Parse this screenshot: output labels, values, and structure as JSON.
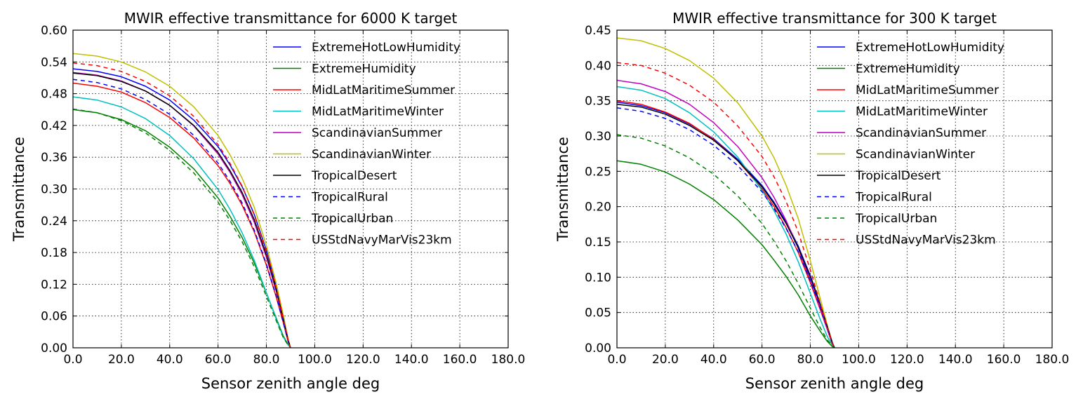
{
  "chart_data": [
    {
      "type": "line",
      "title": "MWIR effective transmittance for 6000 K target",
      "xlabel": "Sensor zenith angle deg",
      "ylabel": "Transmittance",
      "xlim": [
        0,
        180
      ],
      "ylim": [
        0,
        0.6
      ],
      "xticks": [
        0,
        20,
        40,
        60,
        80,
        100,
        120,
        140,
        160,
        180
      ],
      "xtick_labels": [
        "0.0",
        "20.0",
        "40.0",
        "60.0",
        "80.0",
        "100.0",
        "120.0",
        "140.0",
        "160.0",
        "180.0"
      ],
      "yticks": [
        0,
        0.06,
        0.12,
        0.18,
        0.24,
        0.3,
        0.36,
        0.42,
        0.48,
        0.54,
        0.6
      ],
      "ytick_labels": [
        "0.00",
        "0.06",
        "0.12",
        "0.18",
        "0.24",
        "0.30",
        "0.36",
        "0.42",
        "0.48",
        "0.54",
        "0.60"
      ],
      "grid": true,
      "legend_position": "top-right",
      "x": [
        0,
        10,
        20,
        30,
        40,
        50,
        60,
        65,
        70,
        75,
        80,
        84,
        87,
        89,
        90
      ],
      "series": [
        {
          "name": "ExtremeHotLowHumidity",
          "color": "#0000ff",
          "style": "solid",
          "values": [
            0.527,
            0.522,
            0.512,
            0.494,
            0.468,
            0.43,
            0.38,
            0.345,
            0.304,
            0.252,
            0.184,
            0.117,
            0.058,
            0.015,
            0.0
          ]
        },
        {
          "name": "ExtremeHumidity",
          "color": "#008000",
          "style": "solid",
          "values": [
            0.45,
            0.444,
            0.431,
            0.41,
            0.379,
            0.338,
            0.283,
            0.248,
            0.208,
            0.16,
            0.103,
            0.057,
            0.022,
            0.006,
            0.0
          ]
        },
        {
          "name": "MidLatMaritimeSummer",
          "color": "#ff0000",
          "style": "solid",
          "values": [
            0.5,
            0.494,
            0.483,
            0.463,
            0.435,
            0.396,
            0.344,
            0.31,
            0.269,
            0.219,
            0.156,
            0.097,
            0.047,
            0.011,
            0.0
          ]
        },
        {
          "name": "MidLatMaritimeWinter",
          "color": "#00bfbf",
          "style": "solid",
          "values": [
            0.474,
            0.468,
            0.455,
            0.433,
            0.401,
            0.357,
            0.299,
            0.261,
            0.217,
            0.165,
            0.104,
            0.055,
            0.02,
            0.005,
            0.0
          ]
        },
        {
          "name": "ScandinavianSummer",
          "color": "#bf00bf",
          "style": "solid",
          "values": [
            0.52,
            0.515,
            0.504,
            0.485,
            0.458,
            0.419,
            0.366,
            0.331,
            0.289,
            0.237,
            0.171,
            0.108,
            0.053,
            0.013,
            0.0
          ]
        },
        {
          "name": "ScandinavianWinter",
          "color": "#bfbf00",
          "style": "solid",
          "values": [
            0.556,
            0.551,
            0.54,
            0.521,
            0.494,
            0.455,
            0.401,
            0.364,
            0.32,
            0.265,
            0.193,
            0.123,
            0.061,
            0.016,
            0.0
          ]
        },
        {
          "name": "TropicalDesert",
          "color": "#000000",
          "style": "solid",
          "values": [
            0.519,
            0.514,
            0.503,
            0.485,
            0.458,
            0.42,
            0.369,
            0.334,
            0.293,
            0.242,
            0.175,
            0.111,
            0.054,
            0.014,
            0.0
          ]
        },
        {
          "name": "TropicalRural",
          "color": "#0000ff",
          "style": "dashed",
          "values": [
            0.507,
            0.501,
            0.489,
            0.469,
            0.441,
            0.401,
            0.349,
            0.314,
            0.273,
            0.222,
            0.158,
            0.099,
            0.047,
            0.012,
            0.0
          ]
        },
        {
          "name": "TropicalUrban",
          "color": "#008000",
          "style": "dashed",
          "values": [
            0.451,
            0.444,
            0.429,
            0.406,
            0.373,
            0.33,
            0.275,
            0.24,
            0.2,
            0.153,
            0.097,
            0.052,
            0.019,
            0.005,
            0.0
          ]
        },
        {
          "name": "USStdNavyMarVis23km",
          "color": "#ff0000",
          "style": "dashed",
          "values": [
            0.538,
            0.533,
            0.522,
            0.503,
            0.476,
            0.437,
            0.384,
            0.348,
            0.305,
            0.251,
            0.181,
            0.115,
            0.056,
            0.014,
            0.0
          ]
        }
      ]
    },
    {
      "type": "line",
      "title": "MWIR effective transmittance for 300 K target",
      "xlabel": "Sensor zenith angle deg",
      "ylabel": "Transmittance",
      "xlim": [
        0,
        180
      ],
      "ylim": [
        0,
        0.45
      ],
      "xticks": [
        0,
        20,
        40,
        60,
        80,
        100,
        120,
        140,
        160,
        180
      ],
      "xtick_labels": [
        "0.0",
        "20.0",
        "40.0",
        "60.0",
        "80.0",
        "100.0",
        "120.0",
        "140.0",
        "160.0",
        "180.0"
      ],
      "yticks": [
        0,
        0.05,
        0.1,
        0.15,
        0.2,
        0.25,
        0.3,
        0.35,
        0.4,
        0.45
      ],
      "ytick_labels": [
        "0.00",
        "0.05",
        "0.10",
        "0.15",
        "0.20",
        "0.25",
        "0.30",
        "0.35",
        "0.40",
        "0.45"
      ],
      "grid": true,
      "legend_position": "top-right",
      "x": [
        0,
        10,
        20,
        30,
        40,
        50,
        60,
        65,
        70,
        75,
        80,
        84,
        87,
        89,
        90
      ],
      "series": [
        {
          "name": "ExtremeHotLowHumidity",
          "color": "#0000ff",
          "style": "solid",
          "values": [
            0.348,
            0.343,
            0.333,
            0.317,
            0.296,
            0.267,
            0.23,
            0.206,
            0.178,
            0.144,
            0.102,
            0.063,
            0.031,
            0.008,
            0.0
          ]
        },
        {
          "name": "ExtremeHumidity",
          "color": "#008000",
          "style": "solid",
          "values": [
            0.265,
            0.26,
            0.249,
            0.232,
            0.21,
            0.181,
            0.146,
            0.124,
            0.101,
            0.075,
            0.045,
            0.024,
            0.009,
            0.002,
            0.0
          ]
        },
        {
          "name": "MidLatMaritimeSummer",
          "color": "#ff0000",
          "style": "solid",
          "values": [
            0.35,
            0.345,
            0.334,
            0.318,
            0.295,
            0.265,
            0.225,
            0.2,
            0.17,
            0.135,
            0.092,
            0.055,
            0.026,
            0.006,
            0.0
          ]
        },
        {
          "name": "MidLatMaritimeWinter",
          "color": "#00bfbf",
          "style": "solid",
          "values": [
            0.37,
            0.365,
            0.353,
            0.333,
            0.306,
            0.27,
            0.223,
            0.194,
            0.161,
            0.122,
            0.077,
            0.041,
            0.016,
            0.004,
            0.0
          ]
        },
        {
          "name": "ScandinavianSummer",
          "color": "#bf00bf",
          "style": "solid",
          "values": [
            0.379,
            0.374,
            0.363,
            0.345,
            0.319,
            0.285,
            0.241,
            0.213,
            0.18,
            0.141,
            0.095,
            0.057,
            0.026,
            0.006,
            0.0
          ]
        },
        {
          "name": "ScandinavianWinter",
          "color": "#bfbf00",
          "style": "solid",
          "values": [
            0.439,
            0.435,
            0.424,
            0.407,
            0.382,
            0.347,
            0.3,
            0.269,
            0.23,
            0.183,
            0.123,
            0.071,
            0.032,
            0.008,
            0.0
          ]
        },
        {
          "name": "TropicalDesert",
          "color": "#000000",
          "style": "solid",
          "values": [
            0.345,
            0.341,
            0.331,
            0.315,
            0.294,
            0.265,
            0.228,
            0.204,
            0.176,
            0.142,
            0.1,
            0.062,
            0.03,
            0.008,
            0.0
          ]
        },
        {
          "name": "TropicalRural",
          "color": "#0000ff",
          "style": "dashed",
          "values": [
            0.34,
            0.335,
            0.325,
            0.309,
            0.287,
            0.258,
            0.221,
            0.197,
            0.169,
            0.136,
            0.095,
            0.058,
            0.028,
            0.007,
            0.0
          ]
        },
        {
          "name": "TropicalUrban",
          "color": "#008000",
          "style": "dashed",
          "values": [
            0.302,
            0.297,
            0.286,
            0.269,
            0.246,
            0.215,
            0.176,
            0.151,
            0.123,
            0.091,
            0.056,
            0.029,
            0.011,
            0.003,
            0.0
          ]
        },
        {
          "name": "USStdNavyMarVis23km",
          "color": "#ff0000",
          "style": "dashed",
          "values": [
            0.404,
            0.4,
            0.389,
            0.372,
            0.348,
            0.314,
            0.271,
            0.242,
            0.207,
            0.164,
            0.11,
            0.064,
            0.029,
            0.007,
            0.0
          ]
        }
      ]
    }
  ]
}
